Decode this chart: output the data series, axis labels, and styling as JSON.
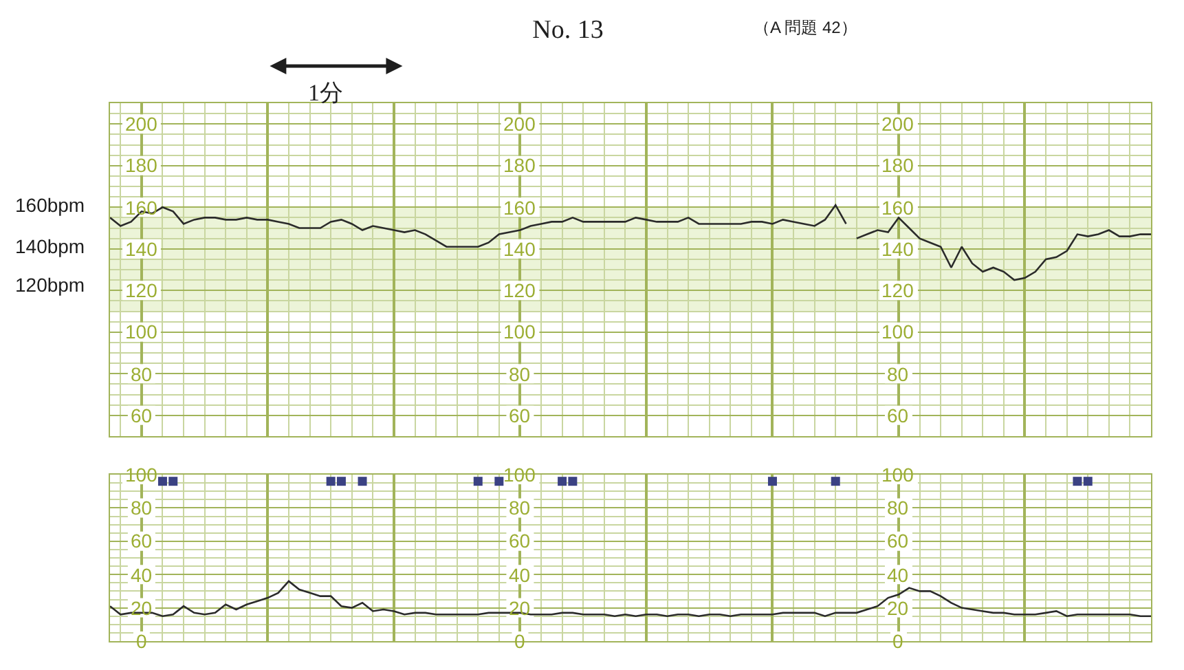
{
  "chart_data": [
    {
      "type": "line",
      "title": "No. 13",
      "subtitle": "（A 問題 42）",
      "categories": [
        null,
        null,
        null,
        null,
        null,
        null,
        null,
        null,
        null,
        null,
        null,
        null,
        null,
        null,
        null,
        null,
        null,
        null,
        null,
        null,
        null,
        null,
        null,
        null,
        null,
        null,
        null,
        null,
        null,
        null,
        null,
        null,
        null,
        null,
        null,
        null,
        null,
        null,
        null,
        null,
        null,
        null,
        null,
        null,
        null,
        null,
        null,
        null,
        null,
        null,
        null,
        null,
        null,
        null,
        null,
        null,
        null,
        null,
        null,
        null,
        null,
        null,
        null,
        null,
        null,
        null,
        null,
        null,
        null,
        null,
        null,
        null,
        null,
        null,
        null,
        null,
        null,
        null,
        null,
        null,
        null,
        null,
        null,
        null,
        null,
        null,
        null,
        null,
        null,
        null,
        null,
        null,
        null,
        null,
        null,
        null,
        null,
        null,
        null,
        null
      ],
      "series": [
        {
          "color": "#2b2b2b",
          "values": [
            155,
            151,
            153,
            158,
            157,
            160,
            158,
            152,
            154,
            155,
            155,
            154,
            154,
            155,
            154,
            154,
            153,
            152,
            150,
            150,
            150,
            153,
            154,
            152,
            149,
            151,
            150,
            149,
            148,
            149,
            147,
            144,
            141,
            141,
            141,
            141,
            143,
            147,
            148,
            149,
            151,
            152,
            153,
            153,
            155,
            153,
            153,
            153,
            153,
            153,
            155,
            154,
            153,
            153,
            153,
            155,
            152,
            152,
            152,
            152,
            152,
            153,
            153,
            152,
            154,
            153,
            152,
            151,
            154,
            161,
            152,
            null,
            null,
            null,
            null,
            null,
            null,
            null,
            null,
            null,
            null,
            null,
            null,
            null,
            null,
            null,
            null,
            null,
            null,
            null,
            null,
            null,
            null,
            null,
            null,
            null,
            null,
            null,
            null,
            null
          ]
        },
        {
          "color": "#2b2b2b",
          "values": [
            null,
            null,
            null,
            null,
            null,
            null,
            null,
            null,
            null,
            null,
            null,
            null,
            null,
            null,
            null,
            null,
            null,
            null,
            null,
            null,
            null,
            null,
            null,
            null,
            null,
            null,
            null,
            null,
            null,
            null,
            null,
            null,
            null,
            null,
            null,
            null,
            null,
            null,
            null,
            null,
            null,
            null,
            null,
            null,
            null,
            null,
            null,
            null,
            null,
            null,
            null,
            null,
            null,
            null,
            null,
            null,
            null,
            null,
            null,
            null,
            null,
            null,
            null,
            null,
            null,
            null,
            null,
            null,
            null,
            null,
            null,
            145,
            147,
            149,
            148,
            155,
            150,
            145,
            143,
            141,
            131,
            141,
            133,
            129,
            131,
            129,
            125,
            126,
            129,
            135,
            136,
            139,
            147,
            146,
            147,
            149,
            146,
            146,
            147,
            147
          ]
        }
      ],
      "ylim": [
        50,
        210
      ],
      "yticks": [
        60,
        {
          "value": 65,
          "label": null
        },
        {
          "value": 70,
          "label": null
        },
        {
          "value": 75,
          "label": null
        },
        80,
        {
          "value": 85,
          "label": null
        },
        {
          "value": 90,
          "label": null
        },
        {
          "value": 95,
          "label": null
        },
        100,
        {
          "value": 105,
          "label": null
        },
        {
          "value": 110,
          "label": null
        },
        {
          "value": 115,
          "label": null
        },
        120,
        {
          "value": 125,
          "label": null
        },
        {
          "value": 130,
          "label": null
        },
        {
          "value": 135,
          "label": null
        },
        140,
        {
          "value": 145,
          "label": null
        },
        {
          "value": 150,
          "label": null
        },
        {
          "value": 155,
          "label": null
        },
        160,
        {
          "value": 165,
          "label": null
        },
        {
          "value": 170,
          "label": null
        },
        {
          "value": 175,
          "label": null
        },
        180,
        {
          "value": 185,
          "label": null
        },
        {
          "value": 190,
          "label": null
        },
        {
          "value": 195,
          "label": null
        },
        200,
        {
          "value": 205,
          "label": null
        }
      ],
      "y2lim": [
        50,
        210
      ],
      "y2ticks": [
        60,
        80,
        100,
        120,
        140,
        160,
        180,
        200
      ],
      "y3lim": [
        50,
        210
      ],
      "y3ticks": [
        60,
        80,
        100,
        120,
        140,
        160,
        180,
        200
      ],
      "grid": true,
      "tick_labels": "y",
      "bands": [
        {
          "axis": "y",
          "from": 110,
          "to": 160,
          "color": "#ecf4d8"
        }
      ],
      "annotations": [
        "1分",
        "160bpm",
        "140bpm",
        "120bpm"
      ]
    },
    {
      "type": "line",
      "categories": [
        null,
        null,
        null,
        null,
        null,
        null,
        null,
        null,
        null,
        null,
        null,
        null,
        null,
        null,
        null,
        null,
        null,
        null,
        null,
        null,
        null,
        null,
        null,
        null,
        null,
        null,
        null,
        null,
        null,
        null,
        null,
        null,
        null,
        null,
        null,
        null,
        null,
        null,
        null,
        null,
        null,
        null,
        null,
        null,
        null,
        null,
        null,
        null,
        null,
        null,
        null,
        null,
        null,
        null,
        null,
        null,
        null,
        null,
        null,
        null,
        null,
        null,
        null,
        null,
        null,
        null,
        null,
        null,
        null,
        null,
        null,
        null,
        null,
        null,
        null,
        null,
        null,
        null,
        null,
        null,
        null,
        null,
        null,
        null,
        null,
        null,
        null,
        null,
        null,
        null,
        null,
        null,
        null,
        null,
        null,
        null,
        null,
        null,
        null,
        null
      ],
      "series": [
        {
          "color": "#2b2b2b",
          "values": [
            21,
            16,
            17,
            17,
            17,
            15,
            16,
            21,
            17,
            16,
            17,
            22,
            19,
            22,
            24,
            26,
            29,
            36,
            31,
            29,
            27,
            27,
            21,
            20,
            23,
            18,
            19,
            18,
            16,
            17,
            17,
            16,
            16,
            16,
            16,
            16,
            17,
            17,
            17,
            17,
            16,
            16,
            16,
            17,
            17,
            16,
            16,
            16,
            15,
            16,
            15,
            16,
            16,
            15,
            16,
            16,
            15,
            16,
            16,
            15,
            16,
            16,
            16,
            16,
            17,
            17,
            17,
            17,
            15,
            17,
            17,
            17,
            19,
            21,
            26,
            28,
            32,
            30,
            30,
            27,
            23,
            20,
            19,
            18,
            17,
            17,
            16,
            16,
            16,
            17,
            18,
            15,
            16,
            16,
            16,
            16,
            16,
            16,
            15,
            15
          ]
        },
        {
          "type": "scatter",
          "marker": "square",
          "color": "#3b4283",
          "values": [
            null,
            null,
            null,
            null,
            null,
            96,
            96,
            null,
            null,
            null,
            null,
            null,
            null,
            null,
            null,
            null,
            null,
            null,
            null,
            null,
            null,
            96,
            96,
            null,
            96,
            null,
            null,
            null,
            null,
            null,
            null,
            null,
            null,
            null,
            null,
            96,
            null,
            96,
            null,
            null,
            null,
            null,
            null,
            96,
            96,
            null,
            null,
            null,
            null,
            null,
            null,
            null,
            null,
            null,
            null,
            null,
            null,
            null,
            null,
            null,
            null,
            null,
            null,
            96,
            null,
            null,
            null,
            null,
            null,
            96,
            null,
            null,
            null,
            null,
            null,
            null,
            null,
            null,
            null,
            null,
            null,
            null,
            null,
            null,
            null,
            null,
            null,
            null,
            null,
            null,
            null,
            null,
            96,
            96,
            null,
            null,
            null,
            null,
            null,
            null
          ]
        }
      ],
      "ylim": [
        0,
        100
      ],
      "yticks": [
        0,
        {
          "value": 5,
          "label": null
        },
        {
          "value": 10,
          "label": null
        },
        {
          "value": 15,
          "label": null
        },
        20,
        {
          "value": 25,
          "label": null
        },
        {
          "value": 30,
          "label": null
        },
        {
          "value": 35,
          "label": null
        },
        40,
        {
          "value": 45,
          "label": null
        },
        {
          "value": 50,
          "label": null
        },
        {
          "value": 55,
          "label": null
        },
        60,
        {
          "value": 65,
          "label": null
        },
        {
          "value": 70,
          "label": null
        },
        {
          "value": 75,
          "label": null
        },
        80,
        {
          "value": 85,
          "label": null
        },
        {
          "value": 90,
          "label": null
        },
        {
          "value": 95,
          "label": null
        },
        100
      ],
      "y2lim": [
        0,
        100
      ],
      "y2ticks": [
        0,
        20,
        40,
        60,
        80,
        100
      ],
      "y3lim": [
        0,
        100
      ],
      "y3ticks": [
        0,
        20,
        40,
        60,
        80,
        100
      ],
      "grid": true,
      "tick_labels": "y"
    }
  ]
}
